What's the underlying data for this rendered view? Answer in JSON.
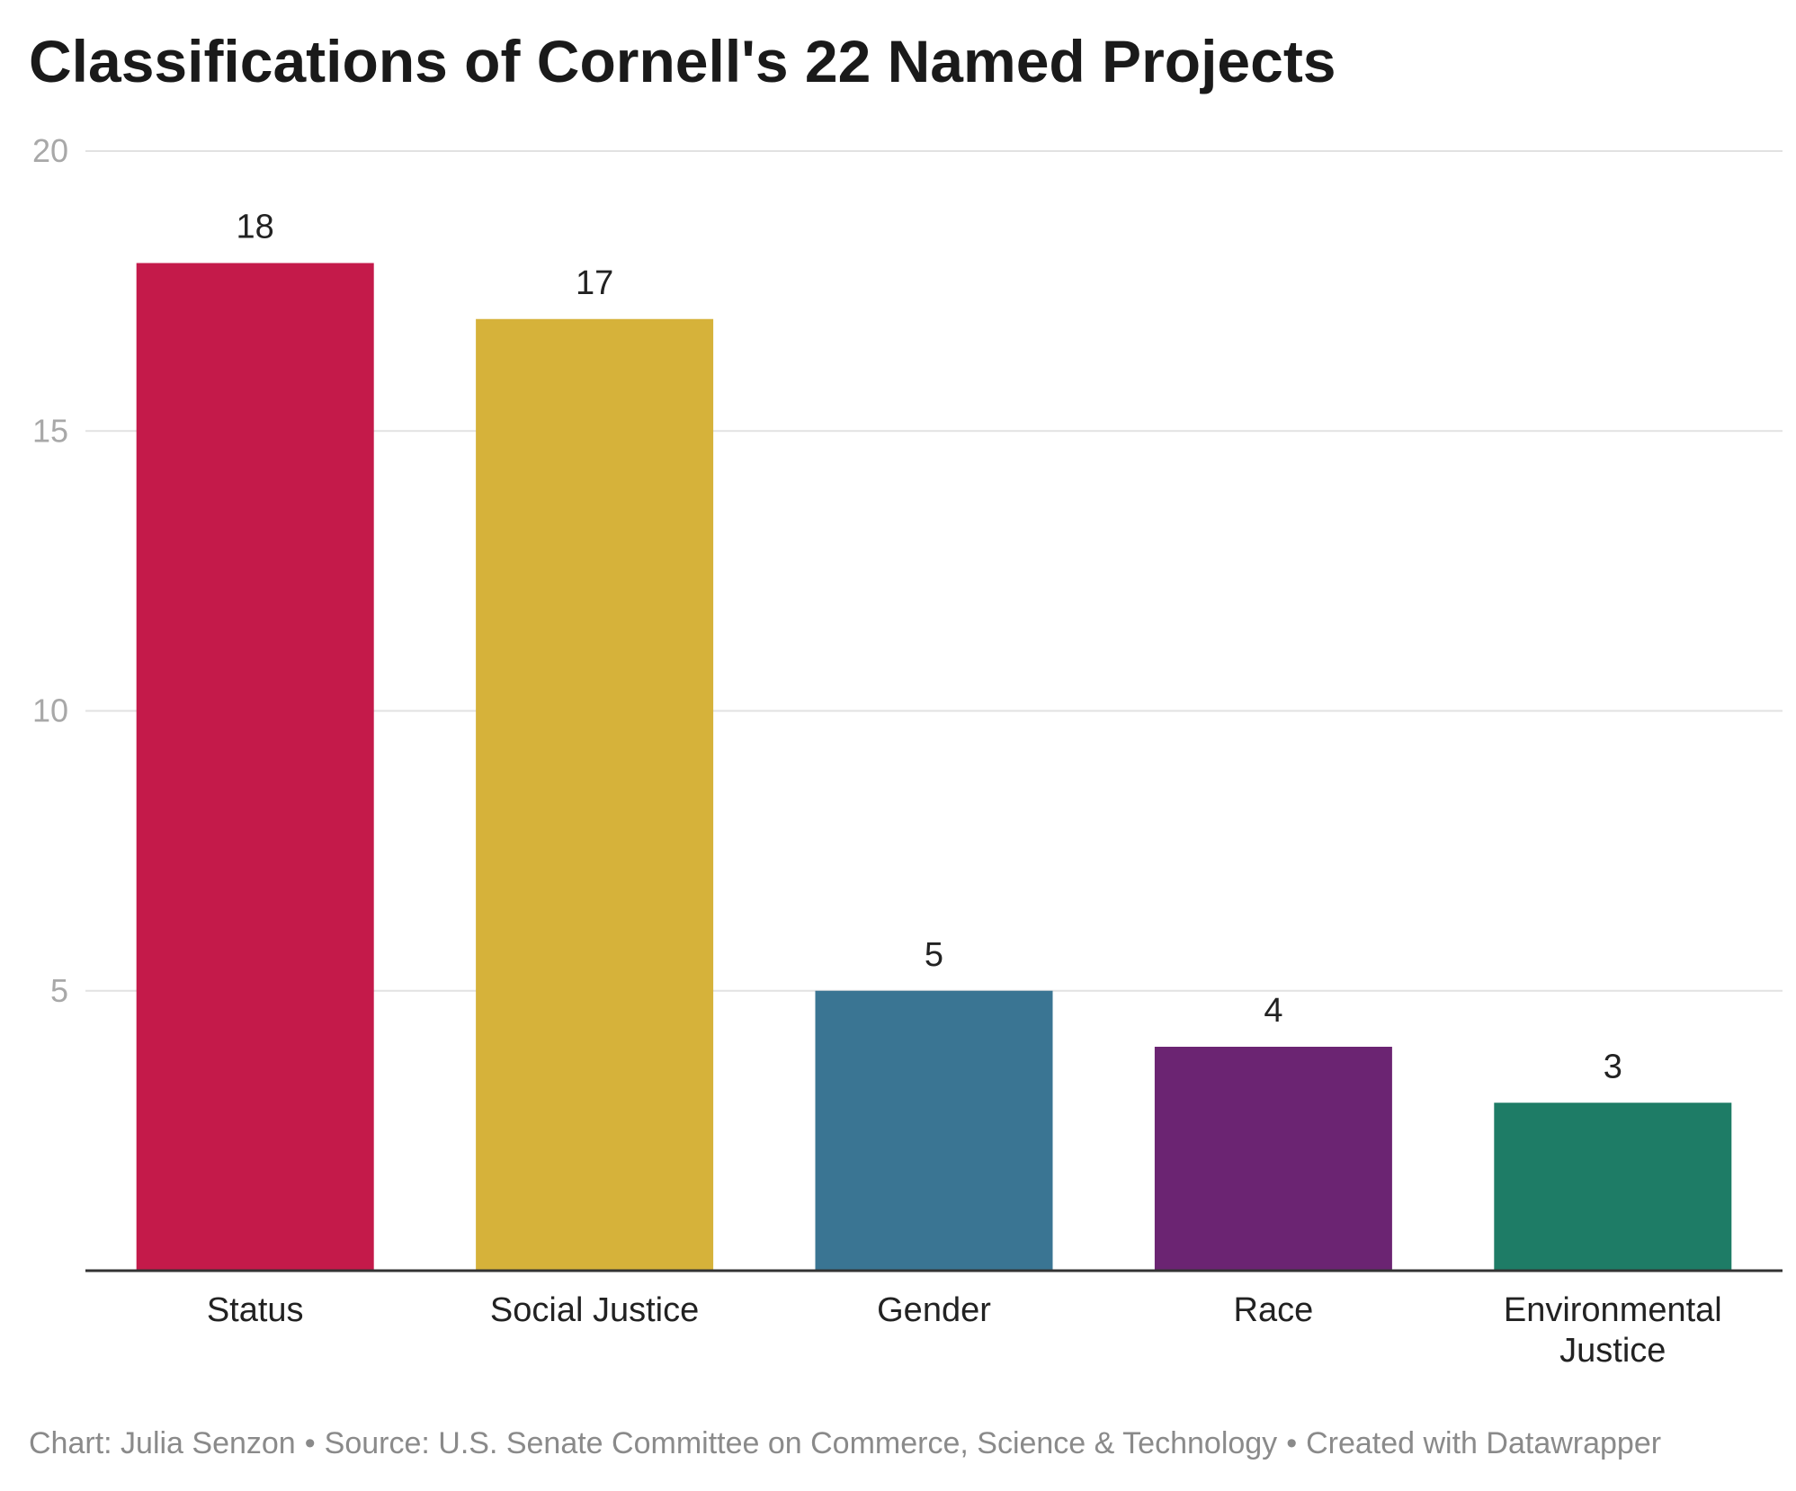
{
  "chart_data": {
    "type": "bar",
    "title": "Classifications of Cornell's 22 Named Projects",
    "categories": [
      "Status",
      "Social Justice",
      "Gender",
      "Race",
      "Environmental Justice"
    ],
    "values": [
      18,
      17,
      5,
      4,
      3
    ],
    "colors": [
      "#c41a4a",
      "#d6b23a",
      "#3a7593",
      "#6b2472",
      "#1e7c66"
    ],
    "ylim": [
      0,
      20
    ],
    "yticks": [
      5,
      10,
      15,
      20
    ],
    "grid": true,
    "data_labels": true,
    "xlabel": "",
    "ylabel": ""
  },
  "footer": {
    "chart_credit": "Chart: Julia Senzon",
    "source": "Source: U.S. Senate Committee on Commerce, Science & Technology",
    "created_with": "Created with Datawrapper",
    "separator": "•"
  }
}
